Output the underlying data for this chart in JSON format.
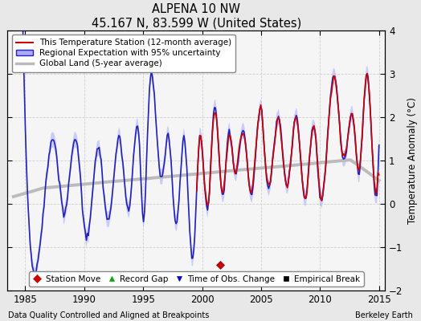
{
  "title": "ALPENA 10 NW",
  "subtitle": "45.167 N, 83.599 W (United States)",
  "ylabel": "Temperature Anomaly (°C)",
  "xlabel_left": "Data Quality Controlled and Aligned at Breakpoints",
  "xlabel_right": "Berkeley Earth",
  "ylim": [
    -2.0,
    4.0
  ],
  "xlim": [
    1983.5,
    2015.5
  ],
  "yticks": [
    -2,
    -1,
    0,
    1,
    2,
    3,
    4
  ],
  "xticks": [
    1985,
    1990,
    1995,
    2000,
    2005,
    2010,
    2015
  ],
  "bg_color": "#e8e8e8",
  "plot_bg": "#f0f0f0",
  "legend_entries": [
    "This Temperature Station (12-month average)",
    "Regional Expectation with 95% uncertainty",
    "Global Land (5-year average)"
  ],
  "marker_entries": [
    {
      "label": "Station Move",
      "color": "#cc0000",
      "marker": "D"
    },
    {
      "label": "Record Gap",
      "color": "#00aa00",
      "marker": "^"
    },
    {
      "label": "Time of Obs. Change",
      "color": "#0000cc",
      "marker": "v"
    },
    {
      "label": "Empirical Break",
      "color": "#000000",
      "marker": "s"
    }
  ],
  "station_move_x": 2001.5,
  "station_move_y": -1.4
}
